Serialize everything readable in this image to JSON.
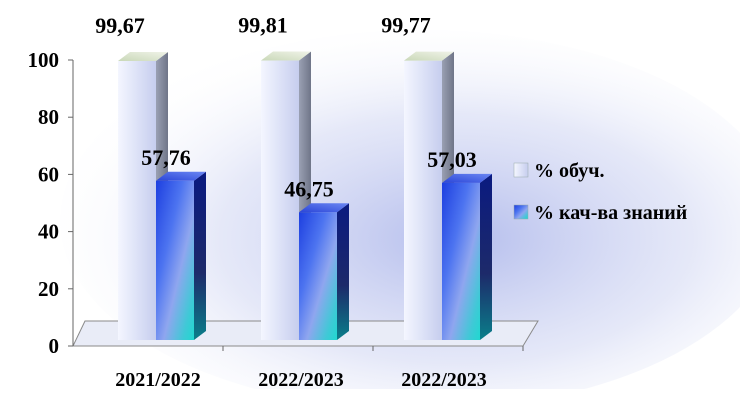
{
  "chart_data": {
    "type": "bar",
    "title": "",
    "xlabel": "",
    "ylabel": "",
    "categories": [
      "2021/2022",
      "2022/2023",
      "2022/2023"
    ],
    "series": [
      {
        "name": "% обуч.",
        "values": [
          99.67,
          99.81,
          99.77
        ],
        "labels": [
          "99,67",
          "99,81",
          "99,77"
        ],
        "color": "#dfe4f7"
      },
      {
        "name": "% кач-ва знаний",
        "values": [
          57.76,
          46.75,
          57.03
        ],
        "labels": [
          "57,76",
          "46,75",
          "57,03"
        ],
        "color": "#2a4fe6"
      }
    ],
    "ylim": [
      0,
      100
    ],
    "yticks": [
      "0",
      "20",
      "40",
      "60",
      "80",
      "100"
    ],
    "grid": false,
    "legend": "right",
    "three_d": true
  }
}
